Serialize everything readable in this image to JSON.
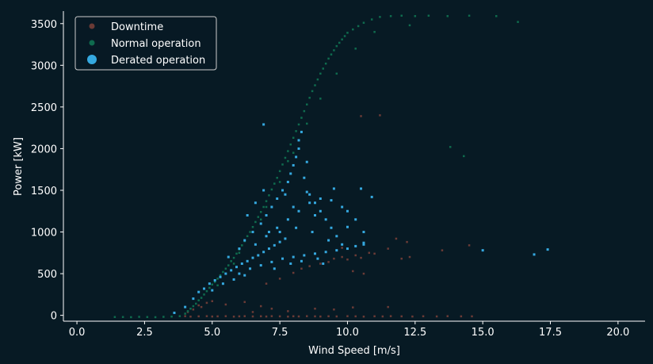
{
  "chart_data": {
    "type": "scatter",
    "title": "",
    "xlabel": "Wind Speed [m/s]",
    "ylabel": "Power [kW]",
    "xlim": [
      -0.5,
      21
    ],
    "ylim": [
      -70,
      3650
    ],
    "xticks": [
      0.0,
      2.5,
      5.0,
      7.5,
      10.0,
      12.5,
      15.0,
      17.5,
      20.0
    ],
    "xtick_labels": [
      "0.0",
      "2.5",
      "5.0",
      "7.5",
      "10.0",
      "12.5",
      "15.0",
      "17.5",
      "20.0"
    ],
    "yticks": [
      0,
      500,
      1000,
      1500,
      2000,
      2500,
      3000,
      3500
    ],
    "ytick_labels": [
      "0",
      "500",
      "1000",
      "1500",
      "2000",
      "2500",
      "3000",
      "3500"
    ],
    "grid": false,
    "legend_position": "top-left",
    "series": [
      {
        "name": "Downtime",
        "color": "#6b3b36",
        "points": [
          [
            4.0,
            -10
          ],
          [
            4.2,
            -15
          ],
          [
            4.5,
            -12
          ],
          [
            4.8,
            -10
          ],
          [
            5.0,
            -14
          ],
          [
            5.2,
            -12
          ],
          [
            5.5,
            -10
          ],
          [
            5.8,
            -15
          ],
          [
            6.0,
            -12
          ],
          [
            6.2,
            -10
          ],
          [
            6.5,
            -13
          ],
          [
            6.8,
            -11
          ],
          [
            7.0,
            -14
          ],
          [
            7.2,
            -10
          ],
          [
            7.5,
            -12
          ],
          [
            7.8,
            -15
          ],
          [
            8.0,
            -11
          ],
          [
            8.2,
            -13
          ],
          [
            8.5,
            -10
          ],
          [
            8.8,
            -12
          ],
          [
            9.0,
            -14
          ],
          [
            9.3,
            -11
          ],
          [
            9.6,
            -13
          ],
          [
            10.0,
            -10
          ],
          [
            10.3,
            -12
          ],
          [
            10.6,
            -15
          ],
          [
            11.0,
            -11
          ],
          [
            11.3,
            -13
          ],
          [
            11.6,
            -10
          ],
          [
            12.0,
            -12
          ],
          [
            12.4,
            -14
          ],
          [
            12.8,
            -11
          ],
          [
            13.3,
            -13
          ],
          [
            13.7,
            -10
          ],
          [
            14.2,
            -12
          ],
          [
            14.6,
            -12
          ],
          [
            4.1,
            40
          ],
          [
            4.3,
            70
          ],
          [
            4.6,
            100
          ],
          [
            4.8,
            150
          ],
          [
            5.0,
            170
          ],
          [
            4.5,
            120
          ],
          [
            5.5,
            130
          ],
          [
            6.2,
            160
          ],
          [
            6.8,
            110
          ],
          [
            7.2,
            80
          ],
          [
            6.5,
            40
          ],
          [
            7.8,
            50
          ],
          [
            8.8,
            80
          ],
          [
            9.5,
            70
          ],
          [
            10.2,
            95
          ],
          [
            11.5,
            100
          ],
          [
            7.0,
            380
          ],
          [
            7.5,
            440
          ],
          [
            8.0,
            510
          ],
          [
            8.3,
            560
          ],
          [
            8.6,
            590
          ],
          [
            9.0,
            620
          ],
          [
            9.3,
            640
          ],
          [
            9.5,
            680
          ],
          [
            9.8,
            700
          ],
          [
            10.0,
            670
          ],
          [
            10.3,
            720
          ],
          [
            10.5,
            690
          ],
          [
            10.8,
            750
          ],
          [
            11.0,
            740
          ],
          [
            11.5,
            800
          ],
          [
            12.0,
            680
          ],
          [
            12.3,
            700
          ],
          [
            13.5,
            780
          ],
          [
            14.5,
            840
          ],
          [
            9.8,
            810
          ],
          [
            10.6,
            500
          ],
          [
            10.2,
            530
          ],
          [
            11.8,
            920
          ],
          [
            12.2,
            880
          ],
          [
            10.5,
            2390
          ],
          [
            11.2,
            2400
          ]
        ]
      },
      {
        "name": "Normal operation",
        "color": "#0f6b4e",
        "points": [
          [
            1.4,
            -20
          ],
          [
            1.7,
            -20
          ],
          [
            2.0,
            -22
          ],
          [
            2.3,
            -18
          ],
          [
            2.6,
            -20
          ],
          [
            2.9,
            -22
          ],
          [
            3.2,
            -18
          ],
          [
            3.5,
            -15
          ],
          [
            3.8,
            -10
          ],
          [
            4.0,
            20
          ],
          [
            4.1,
            50
          ],
          [
            4.2,
            80
          ],
          [
            4.3,
            110
          ],
          [
            4.4,
            140
          ],
          [
            4.5,
            180
          ],
          [
            4.6,
            210
          ],
          [
            4.7,
            250
          ],
          [
            4.8,
            290
          ],
          [
            4.9,
            330
          ],
          [
            5.0,
            370
          ],
          [
            5.1,
            400
          ],
          [
            5.2,
            440
          ],
          [
            5.3,
            480
          ],
          [
            5.4,
            520
          ],
          [
            5.5,
            560
          ],
          [
            5.6,
            600
          ],
          [
            5.7,
            650
          ],
          [
            5.8,
            690
          ],
          [
            5.9,
            740
          ],
          [
            6.0,
            790
          ],
          [
            6.1,
            840
          ],
          [
            6.2,
            890
          ],
          [
            6.3,
            950
          ],
          [
            6.4,
            1000
          ],
          [
            6.5,
            1060
          ],
          [
            6.6,
            1120
          ],
          [
            6.7,
            1180
          ],
          [
            6.8,
            1240
          ],
          [
            6.9,
            1300
          ],
          [
            7.0,
            1370
          ],
          [
            7.1,
            1440
          ],
          [
            7.2,
            1510
          ],
          [
            7.3,
            1580
          ],
          [
            7.4,
            1650
          ],
          [
            7.5,
            1730
          ],
          [
            7.6,
            1810
          ],
          [
            7.7,
            1890
          ],
          [
            7.8,
            1970
          ],
          [
            7.9,
            2050
          ],
          [
            8.0,
            2130
          ],
          [
            8.1,
            2210
          ],
          [
            8.2,
            2290
          ],
          [
            8.3,
            2370
          ],
          [
            8.4,
            2450
          ],
          [
            8.5,
            2530
          ],
          [
            8.6,
            2610
          ],
          [
            8.7,
            2690
          ],
          [
            8.8,
            2760
          ],
          [
            8.9,
            2830
          ],
          [
            9.0,
            2900
          ],
          [
            9.1,
            2960
          ],
          [
            9.2,
            3020
          ],
          [
            9.3,
            3080
          ],
          [
            9.4,
            3130
          ],
          [
            9.5,
            3180
          ],
          [
            9.6,
            3230
          ],
          [
            9.7,
            3270
          ],
          [
            9.8,
            3310
          ],
          [
            9.9,
            3350
          ],
          [
            10.0,
            3390
          ],
          [
            10.2,
            3430
          ],
          [
            10.4,
            3470
          ],
          [
            10.6,
            3510
          ],
          [
            10.9,
            3550
          ],
          [
            11.2,
            3580
          ],
          [
            11.6,
            3590
          ],
          [
            12.0,
            3595
          ],
          [
            12.5,
            3590
          ],
          [
            13.0,
            3595
          ],
          [
            13.7,
            3590
          ],
          [
            14.5,
            3595
          ],
          [
            15.5,
            3590
          ],
          [
            16.3,
            3520
          ],
          [
            12.3,
            3480
          ],
          [
            11.0,
            3400
          ],
          [
            10.3,
            3200
          ],
          [
            9.6,
            2900
          ],
          [
            9.0,
            2600
          ],
          [
            8.5,
            2300
          ],
          [
            8.0,
            1950
          ],
          [
            7.5,
            1600
          ],
          [
            7.0,
            1300
          ],
          [
            6.5,
            1000
          ],
          [
            6.0,
            750
          ],
          [
            13.8,
            2020
          ],
          [
            14.3,
            1910
          ],
          [
            5.2,
            360
          ],
          [
            5.8,
            620
          ],
          [
            6.8,
            1150
          ],
          [
            7.8,
            1850
          ]
        ]
      },
      {
        "name": "Derated operation",
        "color": "#35a9e0",
        "points": [
          [
            3.6,
            30
          ],
          [
            4.0,
            100
          ],
          [
            4.3,
            200
          ],
          [
            4.5,
            280
          ],
          [
            4.7,
            320
          ],
          [
            4.9,
            380
          ],
          [
            5.1,
            420
          ],
          [
            5.3,
            460
          ],
          [
            5.5,
            500
          ],
          [
            5.7,
            540
          ],
          [
            5.9,
            580
          ],
          [
            6.1,
            620
          ],
          [
            6.3,
            650
          ],
          [
            6.5,
            690
          ],
          [
            6.7,
            720
          ],
          [
            6.9,
            760
          ],
          [
            7.1,
            800
          ],
          [
            7.3,
            840
          ],
          [
            7.5,
            880
          ],
          [
            7.7,
            920
          ],
          [
            5.6,
            700
          ],
          [
            6.0,
            800
          ],
          [
            6.2,
            900
          ],
          [
            6.5,
            1000
          ],
          [
            6.8,
            1100
          ],
          [
            7.0,
            1200
          ],
          [
            7.2,
            1300
          ],
          [
            7.4,
            1400
          ],
          [
            7.6,
            1500
          ],
          [
            7.8,
            1600
          ],
          [
            7.9,
            1700
          ],
          [
            8.0,
            1800
          ],
          [
            8.1,
            1900
          ],
          [
            8.2,
            2000
          ],
          [
            8.2,
            2100
          ],
          [
            8.3,
            2200
          ],
          [
            8.4,
            1650
          ],
          [
            8.6,
            1450
          ],
          [
            8.8,
            1350
          ],
          [
            9.0,
            1250
          ],
          [
            9.2,
            1150
          ],
          [
            9.4,
            1050
          ],
          [
            9.6,
            950
          ],
          [
            9.8,
            850
          ],
          [
            10.0,
            800
          ],
          [
            10.3,
            830
          ],
          [
            10.6,
            850
          ],
          [
            6.0,
            500
          ],
          [
            6.4,
            560
          ],
          [
            6.8,
            600
          ],
          [
            7.2,
            640
          ],
          [
            7.6,
            680
          ],
          [
            8.0,
            700
          ],
          [
            8.4,
            720
          ],
          [
            8.8,
            740
          ],
          [
            9.2,
            760
          ],
          [
            9.6,
            780
          ],
          [
            6.6,
            850
          ],
          [
            7.0,
            950
          ],
          [
            7.4,
            1050
          ],
          [
            7.8,
            1150
          ],
          [
            8.2,
            1250
          ],
          [
            8.6,
            1350
          ],
          [
            9.0,
            1400
          ],
          [
            9.4,
            1380
          ],
          [
            9.8,
            1300
          ],
          [
            10.0,
            1250
          ],
          [
            10.3,
            1150
          ],
          [
            10.6,
            1000
          ],
          [
            10.9,
            1420
          ],
          [
            10.5,
            1520
          ],
          [
            9.5,
            1520
          ],
          [
            8.5,
            1480
          ],
          [
            7.7,
            1450
          ],
          [
            8.1,
            1050
          ],
          [
            8.7,
            1000
          ],
          [
            9.3,
            900
          ],
          [
            6.3,
            1200
          ],
          [
            6.6,
            1350
          ],
          [
            6.9,
            1500
          ],
          [
            5.4,
            380
          ],
          [
            5.0,
            300
          ],
          [
            6.9,
            2290
          ],
          [
            8.5,
            1840
          ],
          [
            10.0,
            1060
          ],
          [
            10.6,
            870
          ],
          [
            15.0,
            780
          ],
          [
            16.9,
            730
          ],
          [
            17.4,
            790
          ],
          [
            7.3,
            560
          ],
          [
            5.8,
            430
          ],
          [
            6.2,
            480
          ],
          [
            7.9,
            620
          ],
          [
            8.3,
            650
          ],
          [
            8.9,
            680
          ],
          [
            9.1,
            620
          ],
          [
            7.5,
            1000
          ],
          [
            8.0,
            1300
          ],
          [
            8.8,
            1200
          ],
          [
            7.1,
            1000
          ]
        ]
      }
    ]
  }
}
